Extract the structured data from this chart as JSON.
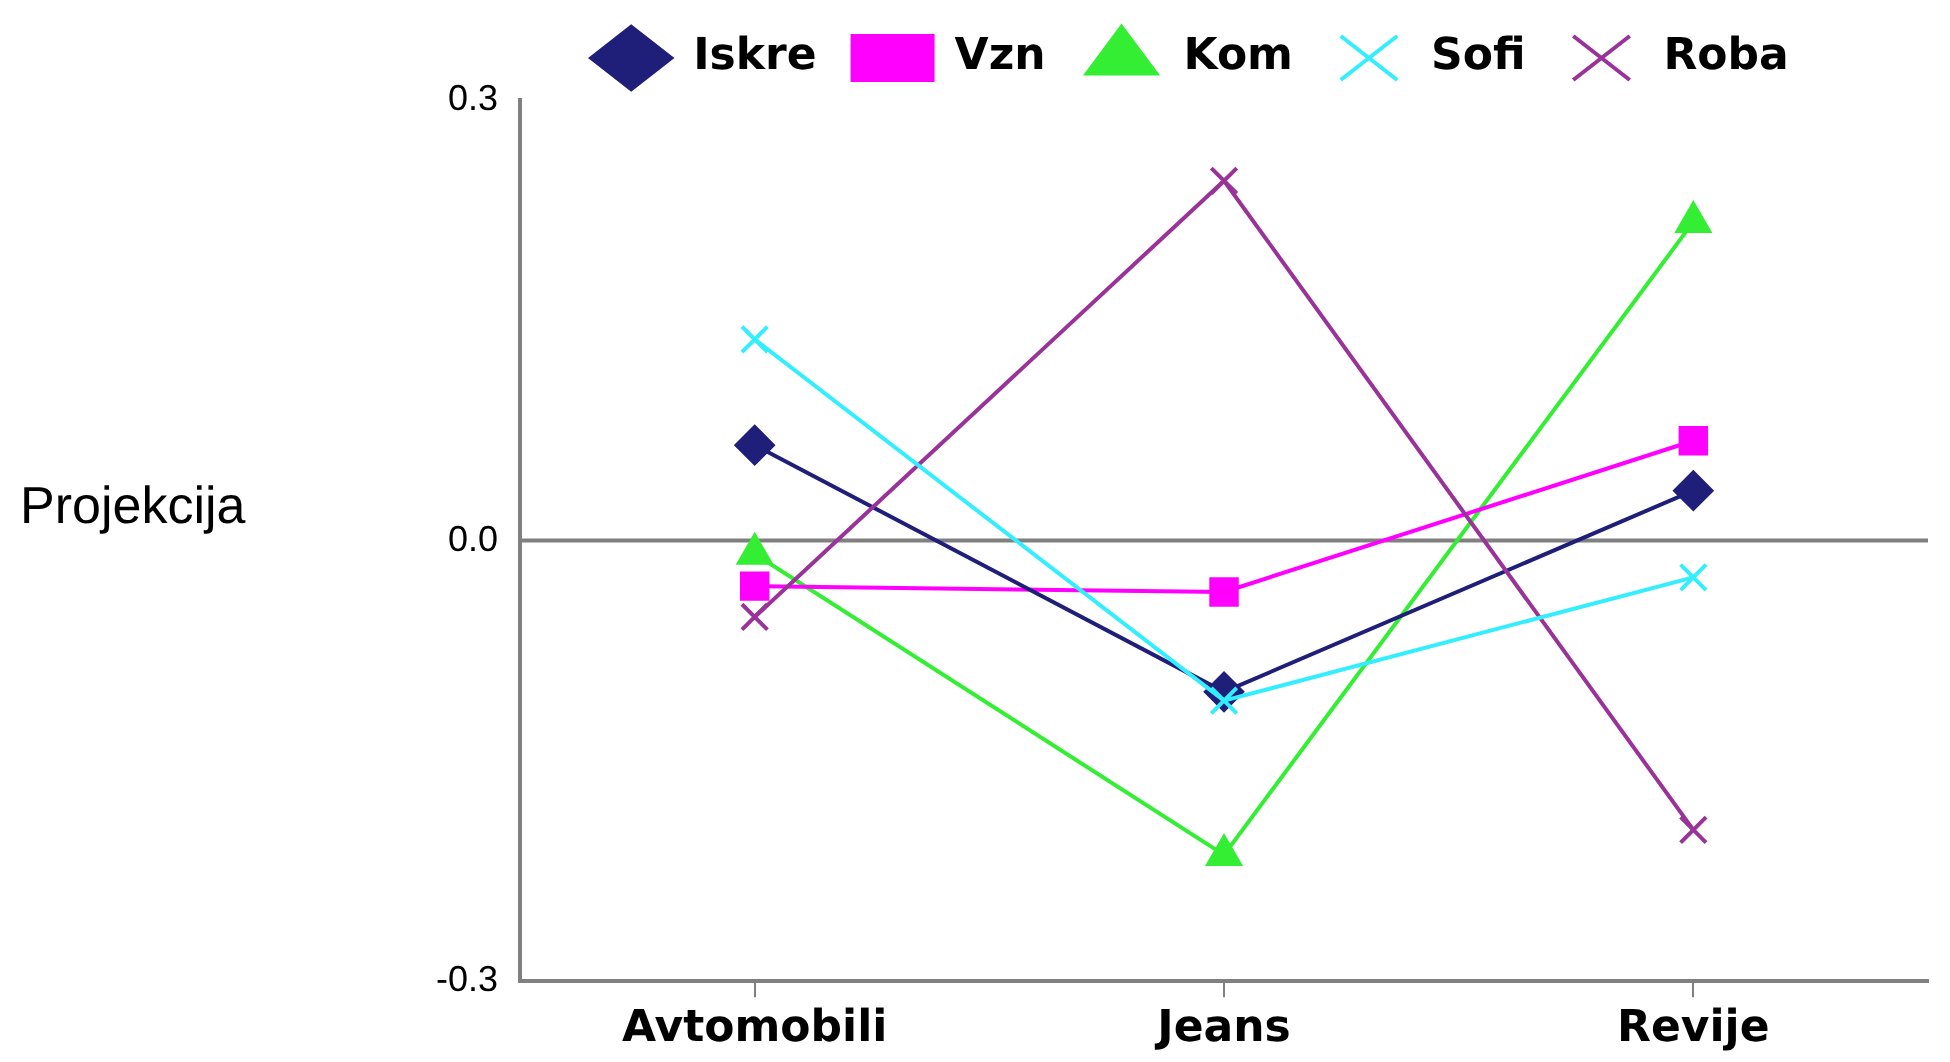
{
  "chart_data": {
    "type": "line",
    "ylabel": "Projekcija",
    "categories": [
      "Avtomobili",
      "Jeans",
      "Revije"
    ],
    "series": [
      {
        "name": "Iskre",
        "color": "#1f1f7a",
        "marker": "diamond",
        "values": [
          0.065,
          -0.103,
          0.034
        ]
      },
      {
        "name": "Vzn",
        "color": "#ff00ff",
        "marker": "square",
        "values": [
          -0.031,
          -0.035,
          0.068
        ]
      },
      {
        "name": "Kom",
        "color": "#33ee33",
        "marker": "triangle",
        "values": [
          -0.009,
          -0.214,
          0.217
        ]
      },
      {
        "name": "Sofi",
        "color": "#33eeff",
        "marker": "cross",
        "values": [
          0.137,
          -0.109,
          -0.025
        ]
      },
      {
        "name": "Roba",
        "color": "#993399",
        "marker": "cross",
        "values": [
          -0.052,
          0.245,
          -0.197
        ]
      }
    ],
    "ylim": [
      -0.3,
      0.3
    ],
    "yticks": [
      {
        "value": -0.3,
        "label": "-0.3"
      },
      {
        "value": 0,
        "label": "0.0"
      },
      {
        "value": 0.3,
        "label": "0.3"
      }
    ],
    "ref_lines": [
      {
        "axis": "y",
        "value": 0,
        "color": "#808080"
      }
    ],
    "legend": "top"
  }
}
